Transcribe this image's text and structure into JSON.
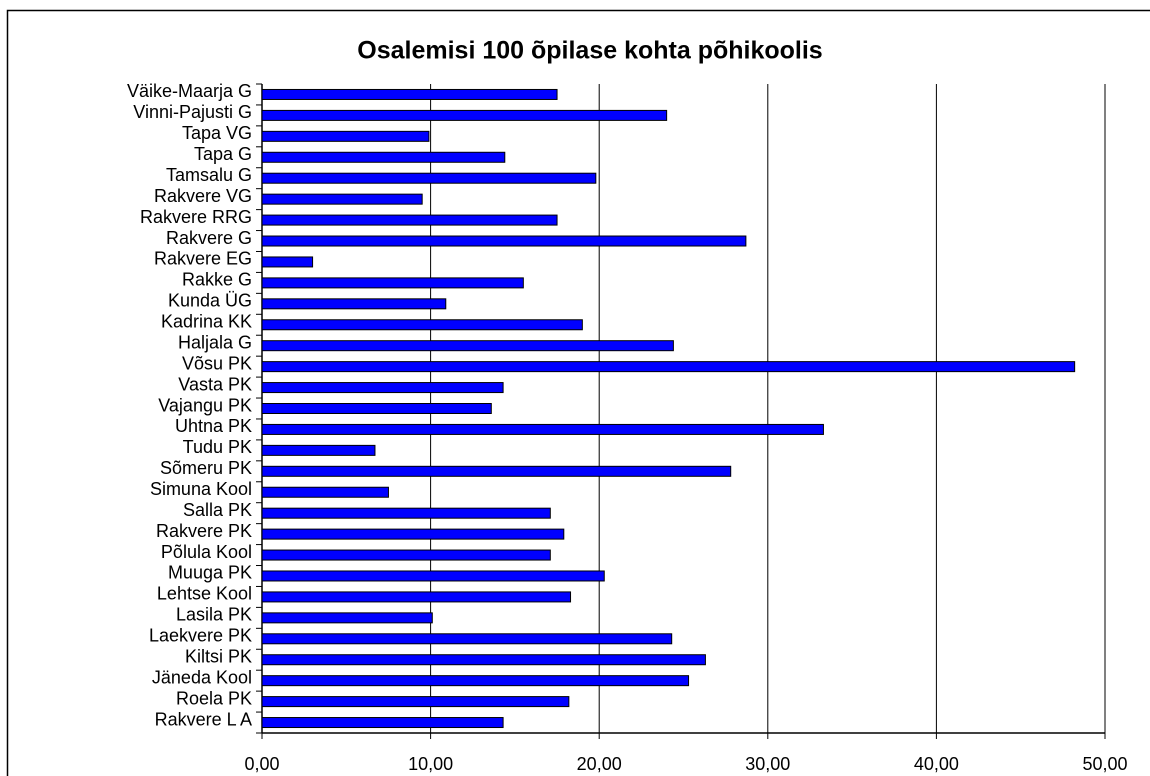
{
  "chart_data": {
    "type": "bar",
    "orientation": "horizontal",
    "title": "Osalemisi 100 õpilase kohta põhikoolis",
    "categories": [
      "Väike-Maarja G",
      "Vinni-Pajusti G",
      "Tapa VG",
      "Tapa G",
      "Tamsalu G",
      "Rakvere VG",
      "Rakvere RRG",
      "Rakvere G",
      "Rakvere EG",
      "Rakke G",
      "Kunda ÜG",
      "Kadrina KK",
      "Haljala G",
      "Võsu PK",
      "Vasta PK",
      "Vajangu PK",
      "Uhtna PK",
      "Tudu PK",
      "Sõmeru PK",
      "Simuna Kool",
      "Salla PK",
      "Rakvere PK",
      "Põlula Kool",
      "Muuga PK",
      "Lehtse Kool",
      "Lasila PK",
      "Laekvere PK",
      "Kiltsi PK",
      "Jäneda Kool",
      "Roela PK",
      "Rakvere L A"
    ],
    "values": [
      17.5,
      24.0,
      9.9,
      14.4,
      19.8,
      9.5,
      17.5,
      28.7,
      3.0,
      15.5,
      10.9,
      19.0,
      24.4,
      48.2,
      14.3,
      13.6,
      33.3,
      6.7,
      27.8,
      7.5,
      17.1,
      17.9,
      17.1,
      20.3,
      18.3,
      10.1,
      24.3,
      26.3,
      25.3,
      18.2,
      14.3
    ],
    "color": "#0000ff",
    "xlim": [
      0,
      50
    ],
    "xticks": [
      {
        "value": 0,
        "label": "0,00"
      },
      {
        "value": 10,
        "label": "10,00"
      },
      {
        "value": 20,
        "label": "20,00"
      },
      {
        "value": 30,
        "label": "30,00"
      },
      {
        "value": 40,
        "label": "40,00"
      },
      {
        "value": 50,
        "label": "50,00"
      }
    ],
    "grid": true
  }
}
